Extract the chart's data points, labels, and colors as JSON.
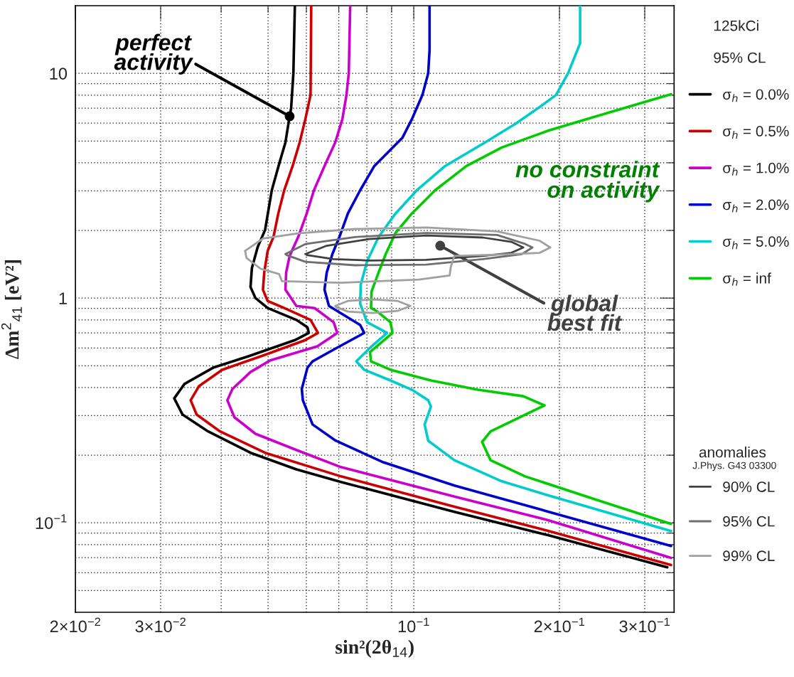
{
  "chart_data": {
    "type": "line",
    "xlabel": "sin²(2θ$_{14}$)",
    "ylabel": "Δm$^{2}$$_{41}$ [eV²]",
    "legend_title": "125kCi",
    "subtitle": "95% CL",
    "xlim": [
      0.02,
      0.345
    ],
    "ylim": [
      0.04,
      20
    ],
    "log": "xy",
    "grid": true,
    "legend": "right",
    "xticks": [
      {
        "value": 0.02,
        "label": "2×10$^{−2}$"
      },
      {
        "value": 0.03,
        "label": "3×10$^{−2}$"
      },
      {
        "value": 0.04,
        "label": null
      },
      {
        "value": 0.05,
        "label": null
      },
      {
        "value": 0.06,
        "label": null
      },
      {
        "value": 0.07,
        "label": null
      },
      {
        "value": 0.08,
        "label": null
      },
      {
        "value": 0.09,
        "label": null
      },
      {
        "value": 0.1,
        "label": "10$^{−1}$"
      },
      {
        "value": 0.2,
        "label": "2×10$^{−1}$"
      },
      {
        "value": 0.3,
        "label": "3×10$^{−1}$"
      }
    ],
    "yticks": [
      {
        "value": 0.05,
        "label": null
      },
      {
        "value": 0.06,
        "label": null
      },
      {
        "value": 0.07,
        "label": null
      },
      {
        "value": 0.08,
        "label": null
      },
      {
        "value": 0.09,
        "label": null
      },
      {
        "value": 0.1,
        "label": "10$^{−1}$"
      },
      {
        "value": 0.2,
        "label": null
      },
      {
        "value": 0.3,
        "label": null
      },
      {
        "value": 0.4,
        "label": null
      },
      {
        "value": 0.5,
        "label": null
      },
      {
        "value": 0.6,
        "label": null
      },
      {
        "value": 0.7,
        "label": null
      },
      {
        "value": 0.8,
        "label": null
      },
      {
        "value": 0.9,
        "label": null
      },
      1,
      {
        "value": 2,
        "label": null
      },
      {
        "value": 3,
        "label": null
      },
      {
        "value": 4,
        "label": null
      },
      {
        "value": 5,
        "label": null
      },
      {
        "value": 6,
        "label": null
      },
      {
        "value": 7,
        "label": null
      },
      {
        "value": 8,
        "label": null
      },
      {
        "value": 9,
        "label": null
      },
      10
    ],
    "series": [
      {
        "name": "σ$_{h}$ = 0.0%",
        "color": "#000000",
        "x": [
          0.0568,
          0.0564,
          0.0558,
          0.0554,
          0.0543,
          0.0527,
          0.0509,
          0.0493,
          0.0476,
          0.0463,
          0.046,
          0.0471,
          0.0499,
          0.0572,
          0.0603,
          0.0607,
          0.0568,
          0.046,
          0.0385,
          0.0336,
          0.032,
          0.0333,
          0.0376,
          0.046,
          0.0572,
          0.0707,
          0.1213,
          0.19,
          0.334
        ],
        "values": [
          20,
          10,
          7,
          6.44,
          4.92,
          3.95,
          3.02,
          2.01,
          1.69,
          1.36,
          1.12,
          1.0,
          0.903,
          0.8,
          0.742,
          0.7,
          0.65,
          0.555,
          0.49,
          0.415,
          0.358,
          0.303,
          0.255,
          0.205,
          0.173,
          0.152,
          0.112,
          0.088,
          0.0634
        ]
      },
      {
        "name": "σ$_{h}$ = 0.5%",
        "color": "#cc0000",
        "x": [
          0.0614,
          0.0612,
          0.0597,
          0.0581,
          0.0562,
          0.054,
          0.0525,
          0.0513,
          0.0499,
          0.0491,
          0.0488,
          0.0499,
          0.054,
          0.0612,
          0.0634,
          0.0597,
          0.0488,
          0.0402,
          0.036,
          0.0346,
          0.0356,
          0.0398,
          0.0493,
          0.0707,
          0.1213,
          0.19,
          0.34
        ],
        "values": [
          20,
          8.01,
          6.25,
          4.92,
          3.87,
          3.02,
          2.38,
          1.87,
          1.62,
          1.3,
          1.09,
          0.971,
          0.903,
          0.8,
          0.7,
          0.65,
          0.555,
          0.48,
          0.406,
          0.351,
          0.303,
          0.255,
          0.205,
          0.161,
          0.118,
          0.092,
          0.0649
        ]
      },
      {
        "name": "σ$_{h}$ = 1.0%",
        "color": "#cc00cc",
        "x": [
          0.0739,
          0.0734,
          0.0726,
          0.0712,
          0.0688,
          0.0654,
          0.0622,
          0.0601,
          0.0577,
          0.0554,
          0.0545,
          0.0543,
          0.0572,
          0.0624,
          0.0683,
          0.0695,
          0.0632,
          0.0504,
          0.046,
          0.0422,
          0.0412,
          0.0426,
          0.0471,
          0.0572,
          0.0707,
          0.1213,
          0.19,
          0.34
        ],
        "values": [
          20,
          10,
          8.01,
          6.25,
          4.92,
          3.87,
          3.02,
          2.38,
          1.87,
          1.54,
          1.3,
          1.09,
          0.923,
          0.903,
          0.781,
          0.7,
          0.61,
          0.527,
          0.469,
          0.394,
          0.351,
          0.295,
          0.249,
          0.211,
          0.177,
          0.131,
          0.1026,
          0.0698
        ]
      },
      {
        "name": "σ$_{h}$ = 2.0%",
        "color": "#0000cc",
        "x": [
          0.1078,
          0.1078,
          0.1071,
          0.1042,
          0.0991,
          0.0948,
          0.0829,
          0.0775,
          0.0731,
          0.0702,
          0.0679,
          0.0661,
          0.0654,
          0.0668,
          0.0775,
          0.079,
          0.069,
          0.0618,
          0.0603,
          0.0587,
          0.059,
          0.0618,
          0.069,
          0.0865,
          0.1213,
          0.19,
          0.34
        ],
        "values": [
          20,
          12.7,
          10,
          8.01,
          6.25,
          5.18,
          3.87,
          3.02,
          2.38,
          1.87,
          1.57,
          1.3,
          1.09,
          0.923,
          0.759,
          0.7,
          0.597,
          0.523,
          0.49,
          0.394,
          0.351,
          0.274,
          0.232,
          0.186,
          0.1465,
          0.112,
          0.0789
        ]
      },
      {
        "name": "σ$_{h}$ = 5.0%",
        "color": "#00cccc",
        "x": [
          0.2206,
          0.2206,
          0.2083,
          0.1967,
          0.182,
          0.1627,
          0.1402,
          0.1161,
          0.1015,
          0.0917,
          0.0846,
          0.0801,
          0.0777,
          0.0775,
          0.0801,
          0.0881,
          0.0818,
          0.0761,
          0.079,
          0.0895,
          0.0991,
          0.1071,
          0.1085,
          0.1053,
          0.1071,
          0.1213,
          0.152,
          0.19,
          0.34
        ],
        "values": [
          20,
          13.6,
          10,
          8.01,
          7.08,
          5.99,
          4.92,
          3.87,
          3.02,
          2.38,
          1.87,
          1.46,
          1.148,
          0.943,
          0.781,
          0.7,
          0.61,
          0.523,
          0.48,
          0.43,
          0.391,
          0.351,
          0.329,
          0.274,
          0.232,
          0.19,
          0.153,
          0.1323,
          0.092
        ]
      },
      {
        "name": "σ$_{h}$ = inf",
        "color": "#00cc00",
        "x": [
          0.34,
          0.2383,
          0.19,
          0.152,
          0.1285,
          0.1107,
          0.0991,
          0.0917,
          0.0875,
          0.0846,
          0.0818,
          0.0816,
          0.0837,
          0.0895,
          0.0904,
          0.0812,
          0.0816,
          0.0895,
          0.1085,
          0.1356,
          0.1683,
          0.1863,
          0.1441,
          0.1384,
          0.1441,
          0.1698,
          0.2383,
          0.34
        ],
        "values": [
          8.07,
          6.44,
          5.57,
          4.68,
          3.87,
          3.02,
          2.38,
          1.95,
          1.57,
          1.3,
          1.07,
          0.903,
          0.877,
          0.781,
          0.7,
          0.575,
          0.523,
          0.48,
          0.43,
          0.391,
          0.366,
          0.333,
          0.255,
          0.229,
          0.19,
          0.161,
          0.1267,
          0.0989
        ]
      },
      {
        "name": "90% CL",
        "color": "#404040",
        "x": [
          0.0597,
          0.0661,
          0.0809,
          0.106,
          0.1389,
          0.159,
          0.1684,
          0.159,
          0.1389,
          0.106,
          0.0809,
          0.0683,
          0.0601
        ],
        "values": [
          1.57,
          1.71,
          1.83,
          1.9,
          1.86,
          1.78,
          1.68,
          1.59,
          1.54,
          1.48,
          1.47,
          1.49,
          1.555
        ]
      },
      {
        "name": "95% CL",
        "color": "#6e6e6e",
        "x": [
          0.0543,
          0.0597,
          0.0756,
          0.106,
          0.1486,
          0.17,
          0.1759,
          0.1673,
          0.1389,
          0.106,
          0.0756,
          0.0597,
          0.0546
        ],
        "values": [
          1.57,
          1.74,
          1.87,
          1.95,
          1.91,
          1.74,
          1.68,
          1.57,
          1.49,
          1.41,
          1.4,
          1.45,
          1.555
        ]
      },
      {
        "name": "99% CL",
        "color": "#a0a0a0",
        "x": [
          0.0448,
          0.0488,
          0.0577,
          0.0756,
          0.106,
          0.1486,
          0.182,
          0.1914,
          0.182,
          0.1486,
          0.1213,
          0.1193,
          0.1186,
          0.1025,
          0.0707,
          0.0534,
          0.0527,
          0.0483,
          0.0451,
          0.0449
        ],
        "values": [
          1.62,
          1.84,
          1.94,
          2.03,
          2.06,
          1.98,
          1.8,
          1.68,
          1.59,
          1.56,
          1.54,
          1.38,
          1.26,
          1.21,
          1.17,
          1.19,
          1.28,
          1.35,
          1.51,
          1.6
        ]
      },
      {
        "color": "#a0a0a0",
        "x": [
          0.0688,
          0.0731,
          0.0823,
          0.0926,
          0.0984,
          0.0926,
          0.0823,
          0.0731,
          0.069
        ],
        "values": [
          0.923,
          0.971,
          0.986,
          0.971,
          0.923,
          0.877,
          0.858,
          0.871,
          0.915
        ]
      }
    ],
    "annotations": [
      {
        "text": "perfect\nactivity",
        "x": 0.0554,
        "y": 6.44
      },
      "no constraint\non activity",
      {
        "text": "global\nbest fit",
        "x": 0.1134,
        "y": 1.71
      },
      "anomalies",
      "J.Phys. G43 03300"
    ]
  }
}
